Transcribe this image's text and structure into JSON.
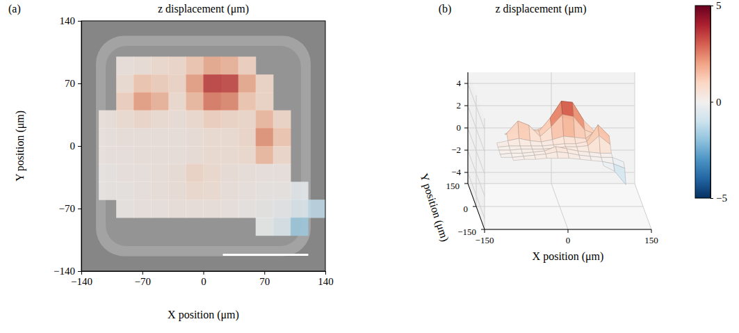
{
  "chart_data": [
    {
      "type": "heatmap",
      "panel": "(a)",
      "title": "z displacement (μm)",
      "x_label": "X position (μm)",
      "y_label": "Y position (μm)",
      "xlim": [
        -140,
        140
      ],
      "xticks": [
        {
          "value": -140,
          "label": "−140"
        },
        {
          "value": -70,
          "label": "−70"
        },
        0,
        70,
        140
      ],
      "ylim": [
        -140,
        140
      ],
      "yticks": [
        {
          "value": -140,
          "label": "−140"
        },
        {
          "value": -70,
          "label": "−70"
        },
        0,
        70,
        140
      ],
      "x": [
        -130,
        -110,
        -90,
        -70,
        -50,
        -30,
        -10,
        10,
        30,
        50,
        70,
        90,
        110,
        130
      ],
      "y": [
        130,
        110,
        90,
        70,
        50,
        30,
        10,
        -10,
        -30,
        -50,
        -70,
        -90,
        -110,
        -130
      ],
      "cells": [
        [
          null,
          null,
          null,
          null,
          null,
          null,
          null,
          null,
          null,
          null,
          null,
          null,
          null,
          null
        ],
        [
          null,
          null,
          null,
          null,
          null,
          null,
          null,
          null,
          null,
          null,
          null,
          null,
          null,
          null
        ],
        [
          null,
          null,
          0.3,
          0.4,
          0.6,
          0.7,
          1.2,
          1.8,
          1.6,
          0.9,
          null,
          null,
          null,
          null
        ],
        [
          null,
          null,
          0.5,
          1.2,
          1.0,
          0.8,
          2.0,
          3.5,
          3.4,
          1.8,
          0.8,
          null,
          null,
          null
        ],
        [
          null,
          null,
          0.9,
          2.0,
          1.6,
          0.6,
          1.5,
          2.6,
          2.4,
          1.2,
          0.8,
          null,
          null,
          null
        ],
        [
          null,
          0.3,
          0.5,
          0.7,
          0.5,
          0.4,
          0.6,
          0.9,
          0.8,
          0.7,
          1.5,
          0.8,
          null,
          null
        ],
        [
          null,
          0.2,
          0.3,
          0.3,
          0.3,
          0.3,
          0.4,
          0.5,
          0.5,
          0.7,
          2.2,
          1.2,
          null,
          null
        ],
        [
          null,
          0.2,
          0.2,
          0.3,
          0.3,
          0.3,
          0.4,
          0.5,
          0.5,
          0.6,
          1.5,
          0.7,
          null,
          null
        ],
        [
          null,
          0.1,
          0.2,
          0.2,
          0.3,
          0.4,
          0.8,
          0.6,
          0.4,
          0.3,
          0.2,
          0.2,
          null,
          null
        ],
        [
          null,
          0.1,
          0.1,
          0.2,
          0.3,
          0.4,
          0.6,
          0.5,
          0.3,
          0.2,
          0.1,
          0.1,
          -0.3,
          null
        ],
        [
          null,
          null,
          0.1,
          0.2,
          0.2,
          0.3,
          0.3,
          0.3,
          0.2,
          0.1,
          0.0,
          -0.2,
          -0.6,
          -1.2
        ],
        [
          null,
          null,
          null,
          null,
          null,
          null,
          null,
          null,
          null,
          null,
          -0.1,
          -0.6,
          -1.8,
          null
        ],
        [
          null,
          null,
          null,
          null,
          null,
          null,
          null,
          null,
          null,
          null,
          null,
          null,
          null,
          null
        ],
        [
          null,
          null,
          null,
          null,
          null,
          null,
          null,
          null,
          null,
          null,
          null,
          null,
          null,
          null
        ]
      ]
    },
    {
      "type": "surface",
      "panel": "(b)",
      "title": "z displacement (μm)",
      "x_label": "X position (μm)",
      "y_label": "Y position (μm)",
      "xlim": [
        -150,
        150
      ],
      "xticks": [
        {
          "value": -150,
          "label": "−150"
        },
        0,
        150
      ],
      "ylim": [
        -150,
        150
      ],
      "yticks": [
        {
          "value": -150,
          "label": "−150"
        },
        0,
        150
      ],
      "zlim": [
        -5,
        5
      ],
      "zticks": [
        {
          "value": -4,
          "label": "−4"
        },
        {
          "value": -2,
          "label": "−2"
        },
        0,
        2,
        4
      ],
      "color_range": [
        -5,
        5
      ],
      "color_ticks": [
        {
          "value": -5,
          "label": "−5"
        },
        0,
        5
      ],
      "x": [
        -130,
        -110,
        -90,
        -70,
        -50,
        -30,
        -10,
        10,
        30,
        50,
        70,
        90,
        110,
        130
      ],
      "y": [
        130,
        110,
        90,
        70,
        50,
        30,
        10,
        -10,
        -30,
        -50,
        -70,
        -90,
        -110,
        -130
      ],
      "z": [
        [
          null,
          null,
          null,
          null,
          null,
          null,
          null,
          null,
          null,
          null,
          null,
          null,
          null,
          null
        ],
        [
          null,
          null,
          null,
          null,
          null,
          null,
          null,
          null,
          null,
          null,
          null,
          null,
          null,
          null
        ],
        [
          null,
          null,
          0.3,
          0.4,
          0.6,
          0.7,
          1.2,
          1.8,
          1.6,
          0.9,
          null,
          null,
          null,
          null
        ],
        [
          null,
          null,
          0.5,
          1.2,
          1.0,
          0.8,
          2.0,
          3.5,
          3.4,
          1.8,
          0.8,
          null,
          null,
          null
        ],
        [
          null,
          null,
          0.9,
          2.0,
          1.6,
          0.6,
          1.5,
          2.6,
          2.4,
          1.2,
          0.8,
          null,
          null,
          null
        ],
        [
          null,
          0.3,
          0.5,
          0.7,
          0.5,
          0.4,
          0.6,
          0.9,
          0.8,
          0.7,
          1.5,
          0.8,
          null,
          null
        ],
        [
          null,
          0.2,
          0.3,
          0.3,
          0.3,
          0.3,
          0.4,
          0.5,
          0.5,
          0.7,
          2.2,
          1.2,
          null,
          null
        ],
        [
          null,
          0.2,
          0.2,
          0.3,
          0.3,
          0.3,
          0.4,
          0.5,
          0.5,
          0.6,
          1.5,
          0.7,
          null,
          null
        ],
        [
          null,
          0.1,
          0.2,
          0.2,
          0.3,
          0.4,
          0.8,
          0.6,
          0.4,
          0.3,
          0.2,
          0.2,
          null,
          null
        ],
        [
          null,
          0.1,
          0.1,
          0.2,
          0.3,
          0.4,
          0.6,
          0.5,
          0.3,
          0.2,
          0.1,
          0.1,
          -0.3,
          null
        ],
        [
          null,
          null,
          0.1,
          0.2,
          0.2,
          0.3,
          0.3,
          0.3,
          0.2,
          0.1,
          0.0,
          -0.2,
          -0.6,
          -1.2
        ],
        [
          null,
          null,
          null,
          null,
          null,
          null,
          null,
          null,
          null,
          null,
          -0.1,
          -0.6,
          -1.8,
          null
        ],
        [
          null,
          null,
          null,
          null,
          null,
          null,
          null,
          null,
          null,
          null,
          null,
          null,
          null,
          null
        ],
        [
          null,
          null,
          null,
          null,
          null,
          null,
          null,
          null,
          null,
          null,
          null,
          null,
          null,
          null
        ]
      ]
    }
  ]
}
